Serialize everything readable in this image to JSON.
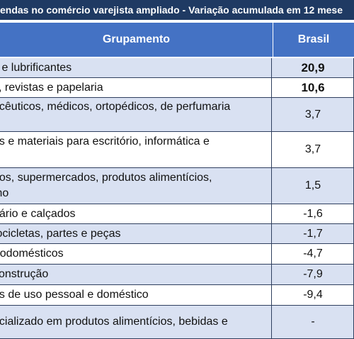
{
  "title": "endas no comércio varejista ampliado - Variação acumulada em 12 mese",
  "header": {
    "col_group": "Grupamento",
    "col_brasil": "Brasil"
  },
  "rows": [
    {
      "label": "s e lubrificantes",
      "value": "20,9"
    },
    {
      "label": "s, revistas e papelaria",
      "value": "10,6"
    },
    {
      "label": "acêuticos, médicos, ortopédicos, de perfumaria\ns",
      "value": "3,7"
    },
    {
      "label": "os e materiais para escritório, informática e\no",
      "value": "3,7"
    },
    {
      "label": "dos, supermercados, produtos alimentícios,\nmo",
      "value": "1,5"
    },
    {
      "label": "uário e calçados",
      "value": "-1,6"
    },
    {
      "label": "tocicletas, partes e peças",
      "value": "-1,7"
    },
    {
      "label": "trodomésticos",
      "value": "-4,7"
    },
    {
      "label": "construção",
      "value": "-7,9"
    },
    {
      "label": "os de uso pessoal e doméstico",
      "value": "-9,4"
    },
    {
      "label": "ecializado em produtos alimentícios, bebidas e\n",
      "value": "-"
    }
  ]
}
